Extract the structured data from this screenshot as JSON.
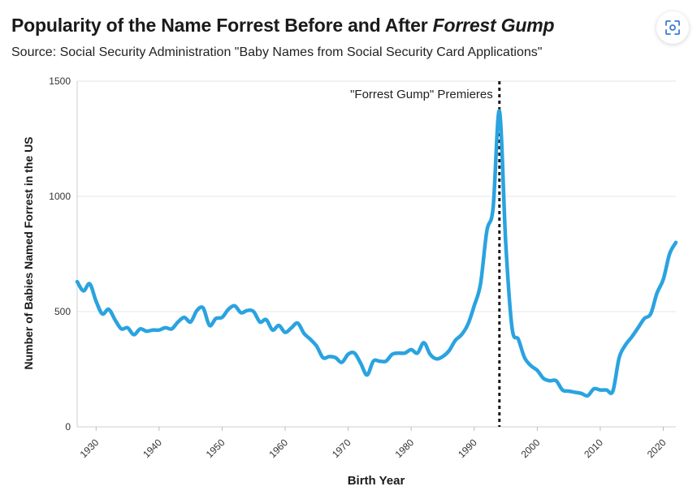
{
  "header": {
    "title_main": "Popularity of the Name Forrest Before and After ",
    "title_italic": "Forrest Gump",
    "subtitle": "Source: Social Security Administration \"Baby Names from Social Security Card Applications\"",
    "expand_icon": "expand-icon"
  },
  "colors": {
    "line": "#2aa3e0",
    "grid": "#e6e6e6",
    "marker": "#1a1a1a"
  },
  "chart_data": {
    "type": "line",
    "title": "Popularity of the Name Forrest Before and After Forrest Gump",
    "xlabel": "Birth Year",
    "ylabel": "Number of Babies Named Forrest in the US",
    "xlim": [
      1927,
      2022
    ],
    "ylim": [
      0,
      1500
    ],
    "x_ticks": [
      1930,
      1940,
      1950,
      1960,
      1970,
      1980,
      1990,
      2000,
      2010,
      2020
    ],
    "y_ticks": [
      0,
      500,
      1000,
      1500
    ],
    "grid": true,
    "annotation": {
      "x": 1994,
      "label": "\"Forrest Gump\" Premieres"
    },
    "x": [
      1927,
      1928,
      1929,
      1930,
      1931,
      1932,
      1933,
      1934,
      1935,
      1936,
      1937,
      1938,
      1939,
      1940,
      1941,
      1942,
      1943,
      1944,
      1945,
      1946,
      1947,
      1948,
      1949,
      1950,
      1951,
      1952,
      1953,
      1954,
      1955,
      1956,
      1957,
      1958,
      1959,
      1960,
      1961,
      1962,
      1963,
      1964,
      1965,
      1966,
      1967,
      1968,
      1969,
      1970,
      1971,
      1972,
      1973,
      1974,
      1975,
      1976,
      1977,
      1978,
      1979,
      1980,
      1981,
      1982,
      1983,
      1984,
      1985,
      1986,
      1987,
      1988,
      1989,
      1990,
      1991,
      1992,
      1993,
      1994,
      1995,
      1996,
      1997,
      1998,
      1999,
      2000,
      2001,
      2002,
      2003,
      2004,
      2005,
      2006,
      2007,
      2008,
      2009,
      2010,
      2011,
      2012,
      2013,
      2014,
      2015,
      2016,
      2017,
      2018,
      2019,
      2020,
      2021,
      2022
    ],
    "values": [
      630,
      590,
      620,
      545,
      490,
      510,
      465,
      425,
      430,
      400,
      425,
      415,
      420,
      420,
      430,
      425,
      455,
      475,
      455,
      505,
      515,
      440,
      470,
      475,
      510,
      525,
      495,
      505,
      500,
      455,
      465,
      420,
      440,
      410,
      430,
      450,
      405,
      380,
      350,
      300,
      305,
      300,
      280,
      315,
      320,
      275,
      225,
      285,
      285,
      285,
      315,
      320,
      320,
      335,
      320,
      365,
      315,
      295,
      305,
      330,
      375,
      400,
      445,
      525,
      620,
      850,
      950,
      1370,
      800,
      430,
      380,
      300,
      265,
      245,
      210,
      200,
      200,
      160,
      155,
      150,
      145,
      135,
      165,
      160,
      160,
      155,
      300,
      355,
      390,
      430,
      470,
      490,
      580,
      640,
      750,
      800
    ]
  }
}
